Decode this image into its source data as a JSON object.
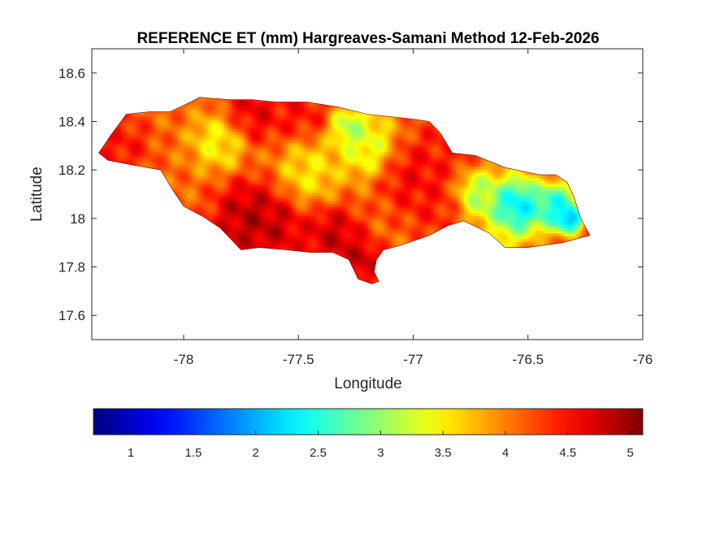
{
  "title": "REFERENCE ET (mm) Hargreaves-Samani Method  12-Feb-2026",
  "map": {
    "xlabel": "Longitude",
    "ylabel": "Latitude",
    "xlim": [
      -78.4,
      -76
    ],
    "ylim": [
      17.5,
      18.7
    ],
    "x_ticks": [
      -78,
      -77.5,
      -77,
      -76.5,
      -76
    ],
    "y_ticks": [
      17.6,
      17.8,
      18,
      18.2,
      18.4,
      18.6
    ],
    "x_tick_labels": [
      "-78",
      "-77.5",
      "-77",
      "-76.5",
      "-76"
    ],
    "y_tick_labels": [
      "17.6",
      "17.8",
      "18",
      "18.2",
      "18.4",
      "18.6"
    ],
    "grid": false,
    "colormap": "jet",
    "region_outline_lonlat": [
      [
        -78.37,
        18.27
      ],
      [
        -78.32,
        18.34
      ],
      [
        -78.25,
        18.43
      ],
      [
        -78.15,
        18.44
      ],
      [
        -78.06,
        18.44
      ],
      [
        -77.97,
        18.48
      ],
      [
        -77.93,
        18.5
      ],
      [
        -77.8,
        18.49
      ],
      [
        -77.7,
        18.49
      ],
      [
        -77.6,
        18.48
      ],
      [
        -77.46,
        18.48
      ],
      [
        -77.33,
        18.46
      ],
      [
        -77.2,
        18.43
      ],
      [
        -77.1,
        18.42
      ],
      [
        -77.0,
        18.41
      ],
      [
        -76.93,
        18.4
      ],
      [
        -76.88,
        18.35
      ],
      [
        -76.83,
        18.27
      ],
      [
        -76.73,
        18.26
      ],
      [
        -76.6,
        18.21
      ],
      [
        -76.45,
        18.18
      ],
      [
        -76.38,
        18.18
      ],
      [
        -76.33,
        18.15
      ],
      [
        -76.3,
        18.09
      ],
      [
        -76.27,
        18.0
      ],
      [
        -76.23,
        17.93
      ],
      [
        -76.35,
        17.9
      ],
      [
        -76.5,
        17.88
      ],
      [
        -76.6,
        17.88
      ],
      [
        -76.67,
        17.94
      ],
      [
        -76.78,
        17.99
      ],
      [
        -76.85,
        17.97
      ],
      [
        -76.93,
        17.93
      ],
      [
        -77.05,
        17.89
      ],
      [
        -77.13,
        17.87
      ],
      [
        -77.16,
        17.83
      ],
      [
        -77.17,
        17.78
      ],
      [
        -77.15,
        17.74
      ],
      [
        -77.18,
        17.73
      ],
      [
        -77.24,
        17.75
      ],
      [
        -77.28,
        17.83
      ],
      [
        -77.35,
        17.86
      ],
      [
        -77.45,
        17.86
      ],
      [
        -77.55,
        17.87
      ],
      [
        -77.67,
        17.88
      ],
      [
        -77.75,
        17.87
      ],
      [
        -77.84,
        17.96
      ],
      [
        -77.92,
        18.01
      ],
      [
        -78.0,
        18.05
      ],
      [
        -78.05,
        18.12
      ],
      [
        -78.1,
        18.2
      ],
      [
        -78.22,
        18.22
      ],
      [
        -78.33,
        18.24
      ]
    ],
    "value_field_nodes": [
      {
        "lon": -77.72,
        "lat": 18.0,
        "value": 5.1,
        "spread": 0.12
      },
      {
        "lon": -77.6,
        "lat": 17.95,
        "value": 4.9,
        "spread": 0.1
      },
      {
        "lon": -77.35,
        "lat": 17.92,
        "value": 5.0,
        "spread": 0.1
      },
      {
        "lon": -77.22,
        "lat": 17.82,
        "value": 5.0,
        "spread": 0.07
      },
      {
        "lon": -78.28,
        "lat": 18.3,
        "value": 4.6,
        "spread": 0.1
      },
      {
        "lon": -77.7,
        "lat": 18.45,
        "value": 4.8,
        "spread": 0.1
      },
      {
        "lon": -77.5,
        "lat": 18.45,
        "value": 4.6,
        "spread": 0.1
      },
      {
        "lon": -77.0,
        "lat": 18.18,
        "value": 4.7,
        "spread": 0.12
      },
      {
        "lon": -76.85,
        "lat": 18.3,
        "value": 4.5,
        "spread": 0.1
      },
      {
        "lon": -76.9,
        "lat": 18.05,
        "value": 4.5,
        "spread": 0.1
      },
      {
        "lon": -77.85,
        "lat": 18.32,
        "value": 3.3,
        "spread": 0.09
      },
      {
        "lon": -77.2,
        "lat": 18.3,
        "value": 3.1,
        "spread": 0.1
      },
      {
        "lon": -77.45,
        "lat": 18.2,
        "value": 3.4,
        "spread": 0.1
      },
      {
        "lon": -77.28,
        "lat": 18.38,
        "value": 2.8,
        "spread": 0.06
      },
      {
        "lon": -76.72,
        "lat": 18.1,
        "value": 2.8,
        "spread": 0.08
      },
      {
        "lon": -76.55,
        "lat": 18.05,
        "value": 1.7,
        "spread": 0.09
      },
      {
        "lon": -76.38,
        "lat": 18.05,
        "value": 1.9,
        "spread": 0.07
      },
      {
        "lon": -76.32,
        "lat": 18.0,
        "value": 1.2,
        "spread": 0.04
      },
      {
        "lon": -76.62,
        "lat": 17.92,
        "value": 3.3,
        "spread": 0.06
      }
    ],
    "value_field_background": 4.1
  },
  "colorbar": {
    "limits": [
      0.7,
      5.1
    ],
    "ticks": [
      1,
      1.5,
      2,
      2.5,
      3,
      3.5,
      4,
      4.5,
      5
    ],
    "tick_labels": [
      "1",
      "1.5",
      "2",
      "2.5",
      "3",
      "3.5",
      "4",
      "4.5",
      "5"
    ]
  }
}
